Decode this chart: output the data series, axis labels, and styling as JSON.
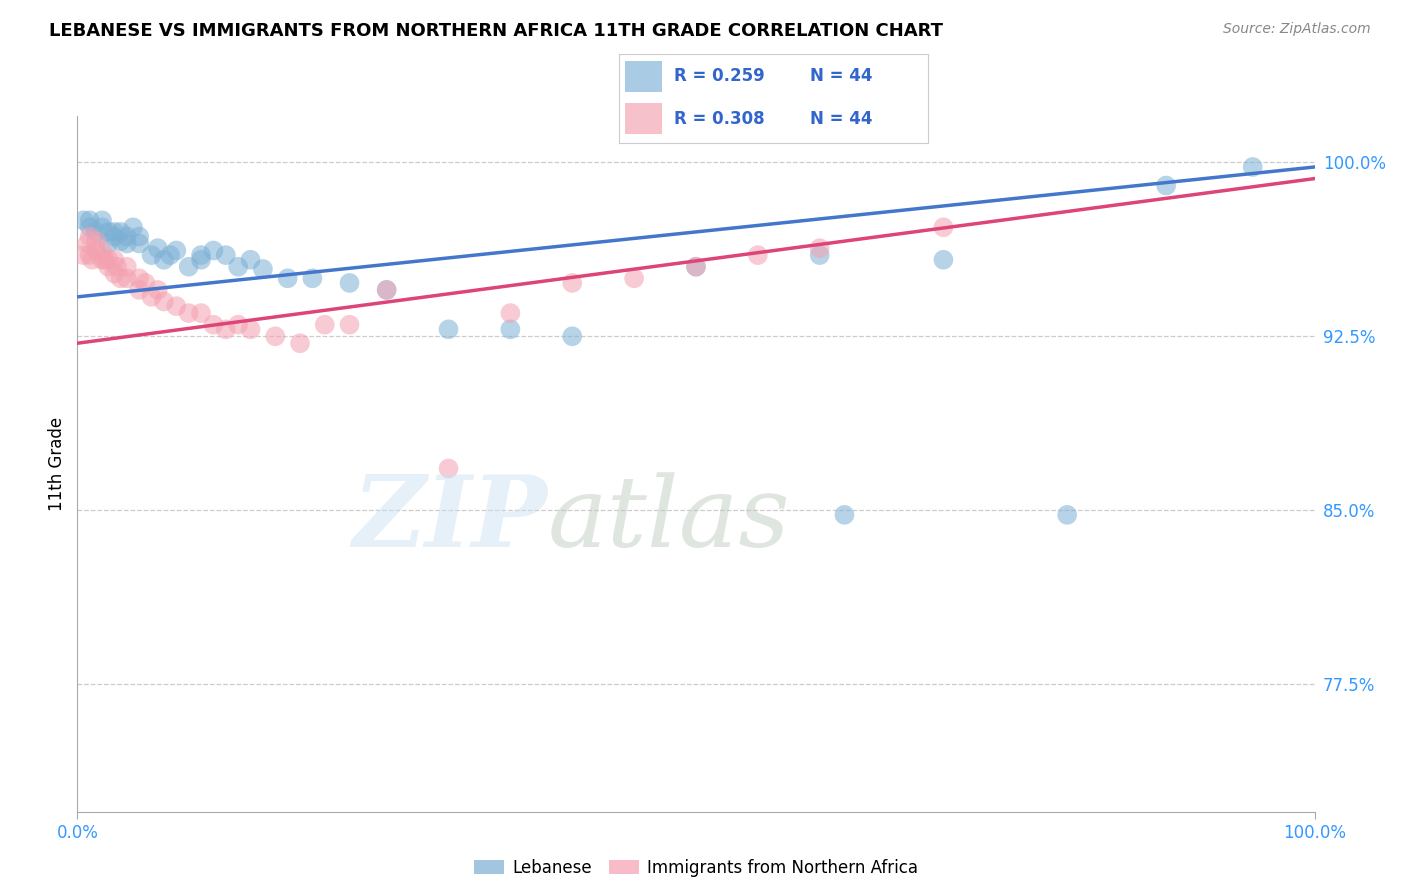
{
  "title": "LEBANESE VS IMMIGRANTS FROM NORTHERN AFRICA 11TH GRADE CORRELATION CHART",
  "source": "Source: ZipAtlas.com",
  "ylabel": "11th Grade",
  "xlim": [
    0.0,
    1.0
  ],
  "ylim": [
    0.72,
    1.02
  ],
  "ytick_labels": [
    "77.5%",
    "85.0%",
    "92.5%",
    "100.0%"
  ],
  "ytick_values": [
    0.775,
    0.85,
    0.925,
    1.0
  ],
  "legend_labels": [
    "Lebanese",
    "Immigrants from Northern Africa"
  ],
  "legend_r_blue": "R = 0.259",
  "legend_n_blue": "N = 44",
  "legend_r_pink": "R = 0.308",
  "legend_n_pink": "N = 44",
  "blue_color": "#7bafd4",
  "pink_color": "#f4a0b0",
  "trend_blue": "#4477cc",
  "trend_pink": "#dd4477",
  "blue_scatter_x": [
    0.005,
    0.01,
    0.01,
    0.015,
    0.02,
    0.02,
    0.025,
    0.025,
    0.03,
    0.03,
    0.035,
    0.035,
    0.04,
    0.04,
    0.045,
    0.05,
    0.05,
    0.06,
    0.065,
    0.07,
    0.075,
    0.08,
    0.09,
    0.1,
    0.1,
    0.11,
    0.12,
    0.13,
    0.14,
    0.15,
    0.17,
    0.19,
    0.22,
    0.25,
    0.3,
    0.35,
    0.4,
    0.5,
    0.6,
    0.62,
    0.7,
    0.8,
    0.88,
    0.95
  ],
  "blue_scatter_y": [
    0.975,
    0.975,
    0.972,
    0.97,
    0.972,
    0.975,
    0.97,
    0.965,
    0.97,
    0.968,
    0.966,
    0.97,
    0.965,
    0.968,
    0.972,
    0.965,
    0.968,
    0.96,
    0.963,
    0.958,
    0.96,
    0.962,
    0.955,
    0.958,
    0.96,
    0.962,
    0.96,
    0.955,
    0.958,
    0.954,
    0.95,
    0.95,
    0.948,
    0.945,
    0.928,
    0.928,
    0.925,
    0.955,
    0.96,
    0.848,
    0.958,
    0.848,
    0.99,
    0.998
  ],
  "pink_scatter_x": [
    0.005,
    0.008,
    0.01,
    0.01,
    0.012,
    0.015,
    0.015,
    0.02,
    0.02,
    0.022,
    0.025,
    0.025,
    0.03,
    0.03,
    0.032,
    0.035,
    0.04,
    0.04,
    0.05,
    0.05,
    0.055,
    0.06,
    0.065,
    0.07,
    0.08,
    0.09,
    0.1,
    0.11,
    0.12,
    0.13,
    0.14,
    0.16,
    0.18,
    0.2,
    0.22,
    0.25,
    0.3,
    0.35,
    0.4,
    0.45,
    0.5,
    0.55,
    0.6,
    0.7
  ],
  "pink_scatter_y": [
    0.96,
    0.965,
    0.96,
    0.968,
    0.958,
    0.962,
    0.966,
    0.958,
    0.962,
    0.958,
    0.955,
    0.958,
    0.952,
    0.958,
    0.955,
    0.95,
    0.95,
    0.955,
    0.945,
    0.95,
    0.948,
    0.942,
    0.945,
    0.94,
    0.938,
    0.935,
    0.935,
    0.93,
    0.928,
    0.93,
    0.928,
    0.925,
    0.922,
    0.93,
    0.93,
    0.945,
    0.868,
    0.935,
    0.948,
    0.95,
    0.955,
    0.96,
    0.963,
    0.972
  ],
  "trend_blue_x0": 0.0,
  "trend_blue_y0": 0.942,
  "trend_blue_x1": 1.0,
  "trend_blue_y1": 0.998,
  "trend_pink_x0": 0.0,
  "trend_pink_y0": 0.922,
  "trend_pink_x1": 1.0,
  "trend_pink_y1": 0.993
}
